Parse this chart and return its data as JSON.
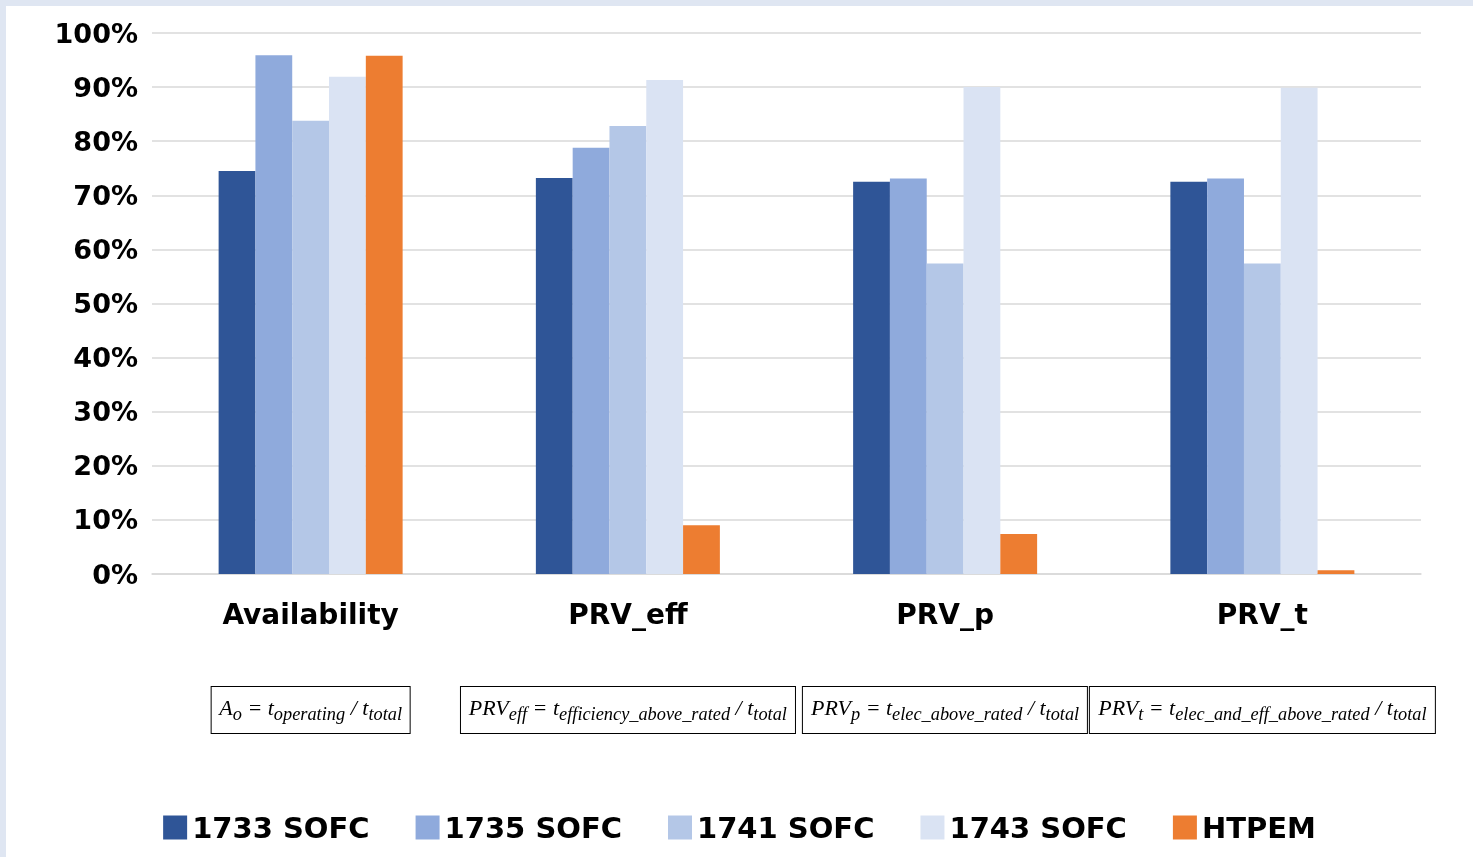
{
  "chart_data": {
    "type": "bar",
    "categories": [
      "Availability",
      "PRV_eff",
      "PRV_p",
      "PRV_t"
    ],
    "series": [
      {
        "name": "1733 SOFC",
        "color": "#2f5597",
        "values": [
          74.5,
          73.2,
          72.5,
          72.5
        ]
      },
      {
        "name": "1735 SOFC",
        "color": "#8faadc",
        "values": [
          95.9,
          78.8,
          73.1,
          73.1
        ]
      },
      {
        "name": "1741 SOFC",
        "color": "#b4c7e7",
        "values": [
          83.8,
          82.8,
          57.4,
          57.4
        ]
      },
      {
        "name": "1743 SOFC",
        "color": "#dae3f3",
        "values": [
          91.9,
          91.3,
          90.0,
          89.9
        ]
      },
      {
        "name": "HTPEM",
        "color": "#ed7d31",
        "values": [
          95.8,
          9.0,
          7.4,
          0.7
        ]
      }
    ],
    "ylim": [
      0,
      100
    ],
    "yticks": [
      {
        "value": 0,
        "label": "0%"
      },
      {
        "value": 10,
        "label": "10%"
      },
      {
        "value": 20,
        "label": "20%"
      },
      {
        "value": 30,
        "label": "30%"
      },
      {
        "value": 40,
        "label": "40%"
      },
      {
        "value": 50,
        "label": "50%"
      },
      {
        "value": 60,
        "label": "60%"
      },
      {
        "value": 70,
        "label": "70%"
      },
      {
        "value": 80,
        "label": "80%"
      },
      {
        "value": 90,
        "label": "90%"
      },
      {
        "value": 100,
        "label": "100%"
      }
    ],
    "grid": "y",
    "legend": "bottom",
    "annotations": [
      "A$_{o}$ = t$_{operating}$ / t$_{total}$",
      "PRV$_{eff}$ = t$_{efficiency_above_rated}$ / t$_{total}$",
      "PRV$_{p}$ = t$_{elec_above_rated}$ / t$_{total}$",
      "PRV$_{t}$ = t$_{elec_and_eff_above_rated}$ / t$_{total}$"
    ]
  }
}
